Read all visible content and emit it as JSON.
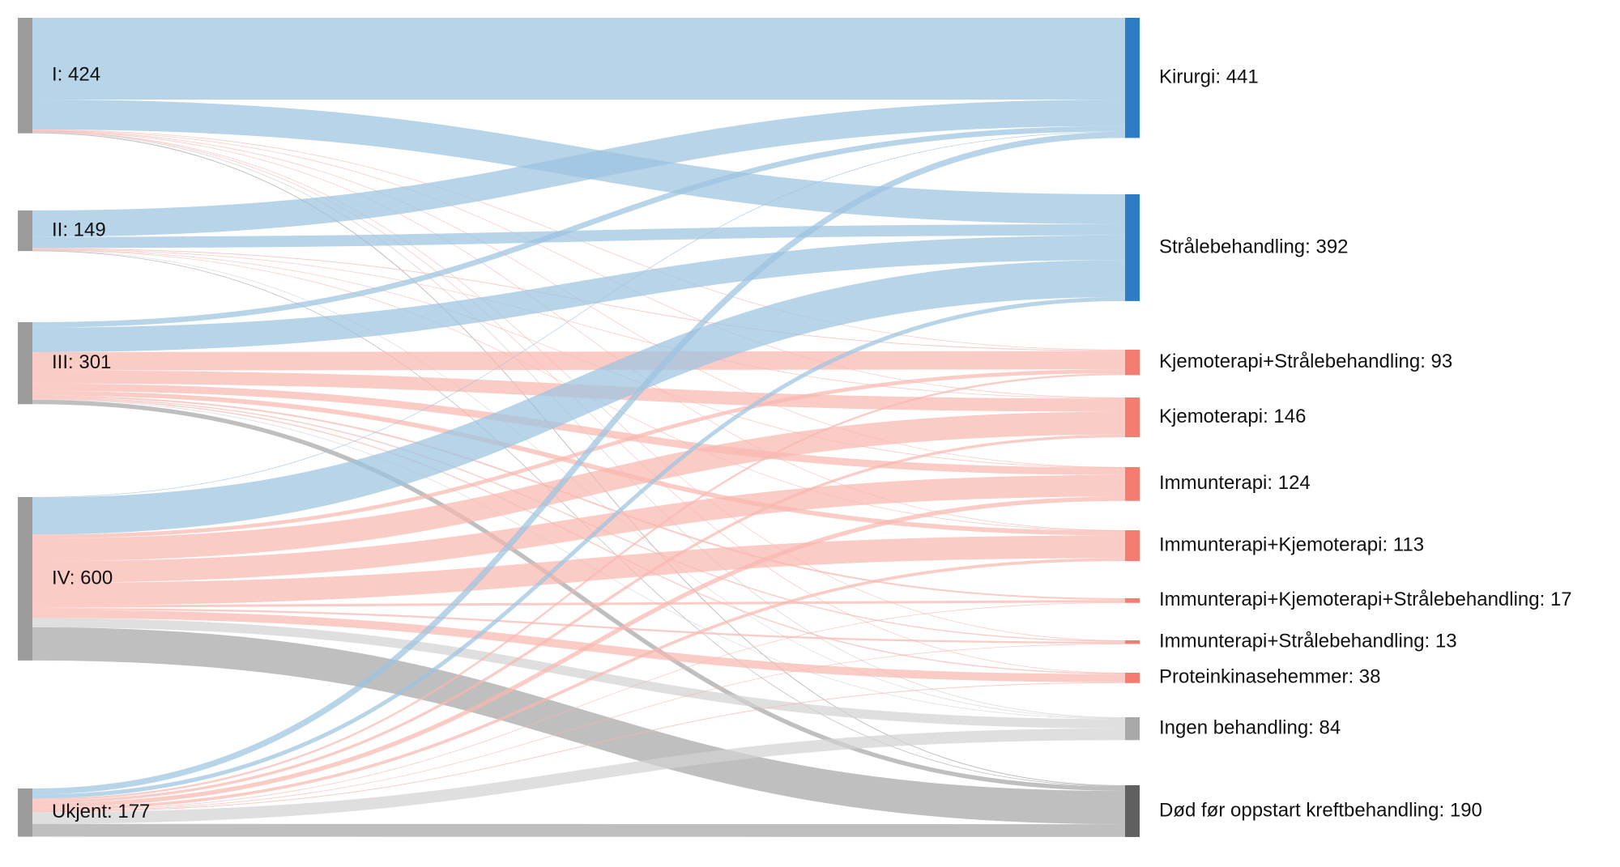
{
  "colors": {
    "surgery_blue": "#2e7dc4",
    "surgery_link": "#9dc3e0",
    "systemic_red": "#f47c70",
    "systemic_link": "#f9b7b0",
    "none_gray": "#a9a9a9",
    "none_link": "#d3d3d3",
    "death_gray": "#5f5f5f",
    "death_link": "#a6a6a6",
    "source_gray": "#9b9b9b"
  },
  "chart_data": {
    "type": "sankey",
    "sources": [
      {
        "id": "I",
        "label": "I: 424",
        "value": 424
      },
      {
        "id": "II",
        "label": "II: 149",
        "value": 149
      },
      {
        "id": "III",
        "label": "III: 301",
        "value": 301
      },
      {
        "id": "IV",
        "label": "IV: 600",
        "value": 600
      },
      {
        "id": "Ukjent",
        "label": "Ukjent: 177",
        "value": 177
      }
    ],
    "targets": [
      {
        "id": "Kirurgi",
        "label": "Kirurgi: 441",
        "value": 441,
        "group": "surgery"
      },
      {
        "id": "Straale",
        "label": "Strålebehandling: 392",
        "value": 392,
        "group": "surgery"
      },
      {
        "id": "KjemoStraale",
        "label": "Kjemoterapi+Strålebehandling: 93",
        "value": 93,
        "group": "systemic"
      },
      {
        "id": "Kjemo",
        "label": "Kjemoterapi: 146",
        "value": 146,
        "group": "systemic"
      },
      {
        "id": "Immun",
        "label": "Immunterapi: 124",
        "value": 124,
        "group": "systemic"
      },
      {
        "id": "ImmunKjemo",
        "label": "Immunterapi+Kjemoterapi: 113",
        "value": 113,
        "group": "systemic"
      },
      {
        "id": "ImmunKjemoStraale",
        "label": "Immunterapi+Kjemoterapi+Strålebehandling: 17",
        "value": 17,
        "group": "systemic"
      },
      {
        "id": "ImmunStraale",
        "label": "Immunterapi+Strålebehandling: 13",
        "value": 13,
        "group": "systemic"
      },
      {
        "id": "Protein",
        "label": "Proteinkinasehemmer: 38",
        "value": 38,
        "group": "systemic"
      },
      {
        "id": "Ingen",
        "label": "Ingen behandling: 84",
        "value": 84,
        "group": "none"
      },
      {
        "id": "Dod",
        "label": "Død før oppstart kreftbehandling: 190",
        "value": 190,
        "group": "death"
      }
    ],
    "links": [
      {
        "source": "I",
        "target": "Kirurgi",
        "value": 300
      },
      {
        "source": "I",
        "target": "Straale",
        "value": 110
      },
      {
        "source": "I",
        "target": "KjemoStraale",
        "value": 2
      },
      {
        "source": "I",
        "target": "Kjemo",
        "value": 2
      },
      {
        "source": "I",
        "target": "Immun",
        "value": 1
      },
      {
        "source": "I",
        "target": "ImmunKjemo",
        "value": 1
      },
      {
        "source": "I",
        "target": "ImmunStraale",
        "value": 1
      },
      {
        "source": "I",
        "target": "Protein",
        "value": 1
      },
      {
        "source": "I",
        "target": "Ingen",
        "value": 3
      },
      {
        "source": "I",
        "target": "Dod",
        "value": 3
      },
      {
        "source": "II",
        "target": "Kirurgi",
        "value": 97
      },
      {
        "source": "II",
        "target": "Straale",
        "value": 41
      },
      {
        "source": "II",
        "target": "KjemoStraale",
        "value": 3
      },
      {
        "source": "II",
        "target": "Kjemo",
        "value": 2
      },
      {
        "source": "II",
        "target": "Immun",
        "value": 1
      },
      {
        "source": "II",
        "target": "ImmunKjemo",
        "value": 1
      },
      {
        "source": "II",
        "target": "Ingen",
        "value": 2
      },
      {
        "source": "II",
        "target": "Dod",
        "value": 2
      },
      {
        "source": "III",
        "target": "Kirurgi",
        "value": 20
      },
      {
        "source": "III",
        "target": "Straale",
        "value": 90
      },
      {
        "source": "III",
        "target": "KjemoStraale",
        "value": 67
      },
      {
        "source": "III",
        "target": "Kjemo",
        "value": 48
      },
      {
        "source": "III",
        "target": "Immun",
        "value": 27
      },
      {
        "source": "III",
        "target": "ImmunKjemo",
        "value": 17
      },
      {
        "source": "III",
        "target": "ImmunKjemoStraale",
        "value": 6
      },
      {
        "source": "III",
        "target": "ImmunStraale",
        "value": 4
      },
      {
        "source": "III",
        "target": "Protein",
        "value": 4
      },
      {
        "source": "III",
        "target": "Ingen",
        "value": 2
      },
      {
        "source": "III",
        "target": "Dod",
        "value": 16
      },
      {
        "source": "IV",
        "target": "Kirurgi",
        "value": 2
      },
      {
        "source": "IV",
        "target": "Straale",
        "value": 136
      },
      {
        "source": "IV",
        "target": "KjemoStraale",
        "value": 14
      },
      {
        "source": "IV",
        "target": "Kjemo",
        "value": 84
      },
      {
        "source": "IV",
        "target": "Immun",
        "value": 79
      },
      {
        "source": "IV",
        "target": "ImmunKjemo",
        "value": 83
      },
      {
        "source": "IV",
        "target": "ImmunKjemoStraale",
        "value": 9
      },
      {
        "source": "IV",
        "target": "ImmunStraale",
        "value": 7
      },
      {
        "source": "IV",
        "target": "Protein",
        "value": 30
      },
      {
        "source": "IV",
        "target": "Ingen",
        "value": 34
      },
      {
        "source": "IV",
        "target": "Dod",
        "value": 122
      },
      {
        "source": "Ukjent",
        "target": "Kirurgi",
        "value": 22
      },
      {
        "source": "Ukjent",
        "target": "Straale",
        "value": 15
      },
      {
        "source": "Ukjent",
        "target": "KjemoStraale",
        "value": 7
      },
      {
        "source": "Ukjent",
        "target": "Kjemo",
        "value": 10
      },
      {
        "source": "Ukjent",
        "target": "Immun",
        "value": 16
      },
      {
        "source": "Ukjent",
        "target": "ImmunKjemo",
        "value": 11
      },
      {
        "source": "Ukjent",
        "target": "ImmunKjemoStraale",
        "value": 2
      },
      {
        "source": "Ukjent",
        "target": "ImmunStraale",
        "value": 1
      },
      {
        "source": "Ukjent",
        "target": "Protein",
        "value": 3
      },
      {
        "source": "Ukjent",
        "target": "Ingen",
        "value": 43
      },
      {
        "source": "Ukjent",
        "target": "Dod",
        "value": 47
      }
    ]
  }
}
